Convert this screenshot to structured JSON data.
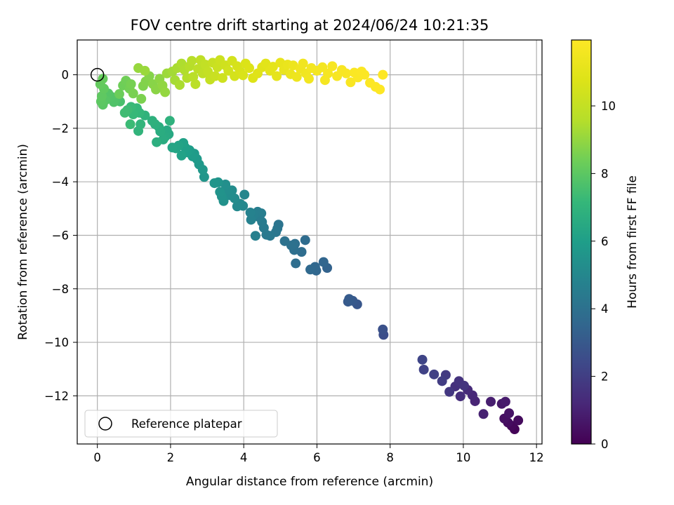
{
  "chart_data": {
    "type": "scatter",
    "title": "FOV centre drift starting at 2024/06/24 10:21:35",
    "xlabel": "Angular distance from reference (arcmin)",
    "ylabel": "Rotation from reference (arcmin)",
    "colorbar_label": "Hours from first FF file",
    "xlim": [
      -0.55,
      12.15
    ],
    "ylim": [
      -13.8,
      1.3
    ],
    "x_ticks": [
      "0",
      "2",
      "4",
      "6",
      "8",
      "10",
      "12"
    ],
    "y_ticks": [
      "0",
      "−2",
      "−4",
      "−6",
      "−8",
      "−10",
      "−12"
    ],
    "colorbar_range": [
      0,
      11.95
    ],
    "colorbar_ticks": [
      "0",
      "2",
      "4",
      "6",
      "8",
      "10"
    ],
    "colormap": "viridis",
    "grid": true,
    "legend_position": "lower-left",
    "marker_color_default": "#1f77b4",
    "reference": {
      "name": "Reference platepar",
      "x": 0,
      "y": 0
    },
    "points": [
      [
        11.4,
        -13.25,
        0.1
      ],
      [
        11.32,
        -13.12,
        0.2
      ],
      [
        11.5,
        -12.92,
        0.3
      ],
      [
        11.22,
        -13.0,
        0.35
      ],
      [
        11.12,
        -12.85,
        0.45
      ],
      [
        11.25,
        -12.65,
        0.55
      ],
      [
        11.05,
        -12.3,
        0.7
      ],
      [
        11.15,
        -12.22,
        0.8
      ],
      [
        10.75,
        -12.22,
        0.9
      ],
      [
        10.55,
        -12.68,
        1.0
      ],
      [
        10.32,
        -12.2,
        1.1
      ],
      [
        10.25,
        -11.98,
        1.2
      ],
      [
        10.12,
        -11.78,
        1.3
      ],
      [
        9.92,
        -12.02,
        1.4
      ],
      [
        9.78,
        -11.65,
        1.5
      ],
      [
        9.88,
        -11.45,
        1.6
      ],
      [
        10.02,
        -11.62,
        1.65
      ],
      [
        9.62,
        -11.85,
        1.75
      ],
      [
        9.52,
        -11.22,
        1.85
      ],
      [
        9.42,
        -11.45,
        1.95
      ],
      [
        9.2,
        -11.2,
        2.05
      ],
      [
        8.92,
        -11.02,
        2.15
      ],
      [
        8.88,
        -10.65,
        2.25
      ],
      [
        7.82,
        -9.72,
        2.6
      ],
      [
        7.8,
        -9.52,
        2.7
      ],
      [
        7.1,
        -8.58,
        2.9
      ],
      [
        6.98,
        -8.45,
        3.0
      ],
      [
        6.85,
        -8.48,
        3.05
      ],
      [
        6.88,
        -8.38,
        3.1
      ],
      [
        6.28,
        -7.22,
        3.4
      ],
      [
        6.18,
        -7.0,
        3.5
      ],
      [
        5.98,
        -7.32,
        3.55
      ],
      [
        5.95,
        -7.18,
        3.6
      ],
      [
        5.82,
        -7.28,
        3.65
      ],
      [
        5.68,
        -6.18,
        3.75
      ],
      [
        5.58,
        -6.62,
        3.8
      ],
      [
        5.42,
        -7.05,
        3.85
      ],
      [
        5.38,
        -6.55,
        3.9
      ],
      [
        5.4,
        -6.32,
        3.95
      ],
      [
        5.3,
        -6.38,
        4.0
      ],
      [
        5.12,
        -6.22,
        4.05
      ],
      [
        4.95,
        -5.6,
        4.15
      ],
      [
        4.92,
        -5.75,
        4.2
      ],
      [
        4.88,
        -5.88,
        4.25
      ],
      [
        4.72,
        -6.02,
        4.3
      ],
      [
        4.62,
        -5.98,
        4.35
      ],
      [
        4.55,
        -5.72,
        4.4
      ],
      [
        4.5,
        -5.5,
        4.45
      ],
      [
        4.42,
        -5.32,
        4.5
      ],
      [
        4.48,
        -5.18,
        4.55
      ],
      [
        4.38,
        -5.12,
        4.6
      ],
      [
        4.28,
        -5.22,
        4.65
      ],
      [
        4.32,
        -6.02,
        4.7
      ],
      [
        4.2,
        -5.42,
        4.75
      ],
      [
        4.18,
        -5.15,
        4.8
      ],
      [
        4.02,
        -4.48,
        4.95
      ],
      [
        3.98,
        -4.9,
        5.0
      ],
      [
        3.9,
        -4.82,
        5.05
      ],
      [
        3.82,
        -4.92,
        5.1
      ],
      [
        3.75,
        -4.62,
        5.15
      ],
      [
        3.68,
        -4.32,
        5.2
      ],
      [
        3.62,
        -4.5,
        5.25
      ],
      [
        3.55,
        -4.28,
        5.3
      ],
      [
        3.5,
        -4.1,
        5.35
      ],
      [
        3.45,
        -4.72,
        5.4
      ],
      [
        3.4,
        -4.55,
        5.45
      ],
      [
        3.35,
        -4.38,
        5.5
      ],
      [
        3.3,
        -4.02,
        5.55
      ],
      [
        3.2,
        -4.05,
        5.6
      ],
      [
        2.92,
        -3.82,
        5.65
      ],
      [
        2.88,
        -3.55,
        5.7
      ],
      [
        2.78,
        -3.35,
        5.75
      ],
      [
        2.72,
        -3.15,
        5.8
      ],
      [
        2.65,
        -2.95,
        5.85
      ],
      [
        2.6,
        -3.05,
        5.9
      ],
      [
        2.52,
        -2.82,
        5.95
      ],
      [
        2.45,
        -2.9,
        6.0
      ],
      [
        2.4,
        -2.72,
        6.05
      ],
      [
        2.35,
        -2.55,
        6.1
      ],
      [
        2.3,
        -3.02,
        6.15
      ],
      [
        2.22,
        -2.65,
        6.2
      ],
      [
        2.15,
        -2.75,
        6.25
      ],
      [
        2.05,
        -2.72,
        6.3
      ],
      [
        1.95,
        -2.22,
        6.45
      ],
      [
        1.9,
        -2.08,
        6.5
      ],
      [
        1.85,
        -2.32,
        6.55
      ],
      [
        1.8,
        -2.42,
        6.6
      ],
      [
        1.72,
        -2.12,
        6.65
      ],
      [
        1.68,
        -1.95,
        6.7
      ],
      [
        1.62,
        -2.52,
        6.75
      ],
      [
        1.58,
        -1.85,
        6.8
      ],
      [
        1.5,
        -1.72,
        6.85
      ],
      [
        1.98,
        -1.72,
        6.9
      ],
      [
        1.3,
        -1.52,
        6.95
      ],
      [
        1.12,
        -2.1,
        7.0
      ],
      [
        1.18,
        -1.85,
        7.05
      ],
      [
        1.15,
        -1.42,
        7.1
      ],
      [
        1.08,
        -1.25,
        7.15
      ],
      [
        0.98,
        -1.48,
        7.2
      ],
      [
        0.92,
        -1.2,
        7.25
      ],
      [
        0.9,
        -1.85,
        7.3
      ],
      [
        0.82,
        -1.32,
        7.35
      ],
      [
        0.75,
        -1.42,
        7.4
      ],
      [
        0.62,
        -1.0,
        7.6
      ],
      [
        0.52,
        -0.92,
        7.7
      ],
      [
        0.45,
        -1.02,
        7.75
      ],
      [
        0.38,
        -0.82,
        7.8
      ],
      [
        0.3,
        -0.7,
        7.85
      ],
      [
        0.22,
        -0.95,
        7.9
      ],
      [
        0.15,
        -1.12,
        7.95
      ],
      [
        0.1,
        -1.0,
        8.0
      ],
      [
        0.12,
        -0.8,
        8.05
      ],
      [
        0.18,
        -0.52,
        8.1
      ],
      [
        0.08,
        -0.35,
        8.15
      ],
      [
        0.15,
        -0.15,
        8.2
      ],
      [
        0.6,
        -0.72,
        8.3
      ],
      [
        0.7,
        -0.4,
        8.35
      ],
      [
        0.78,
        -0.22,
        8.4
      ],
      [
        0.88,
        -0.52,
        8.45
      ],
      [
        0.92,
        -0.35,
        8.5
      ],
      [
        0.98,
        -0.7,
        8.55
      ],
      [
        1.2,
        -0.9,
        8.6
      ],
      [
        1.25,
        -0.42,
        8.65
      ],
      [
        1.32,
        -0.25,
        8.7
      ],
      [
        1.42,
        -0.05,
        8.75
      ],
      [
        1.52,
        -0.35,
        8.8
      ],
      [
        1.6,
        -0.55,
        8.85
      ],
      [
        1.7,
        -0.15,
        8.9
      ],
      [
        1.78,
        -0.4,
        8.95
      ],
      [
        1.85,
        -0.65,
        9.0
      ],
      [
        1.12,
        0.25,
        9.05
      ],
      [
        1.3,
        0.15,
        9.1
      ],
      [
        1.9,
        0.05,
        9.15
      ],
      [
        2.05,
        0.12,
        9.25
      ],
      [
        2.12,
        -0.2,
        9.3
      ],
      [
        2.18,
        0.25,
        9.35
      ],
      [
        2.25,
        -0.38,
        9.4
      ],
      [
        2.3,
        0.42,
        9.45
      ],
      [
        2.38,
        0.18,
        9.5
      ],
      [
        2.45,
        -0.12,
        9.55
      ],
      [
        2.52,
        0.32,
        9.6
      ],
      [
        2.58,
        0.52,
        9.65
      ],
      [
        2.62,
        -0.08,
        9.7
      ],
      [
        2.68,
        -0.35,
        9.75
      ],
      [
        2.75,
        0.22,
        9.8
      ],
      [
        2.82,
        0.55,
        9.85
      ],
      [
        2.88,
        0.05,
        9.9
      ],
      [
        2.95,
        0.38,
        9.95
      ],
      [
        3.02,
        0.12,
        10.0
      ],
      [
        3.08,
        -0.18,
        10.05
      ],
      [
        3.15,
        0.45,
        10.1
      ],
      [
        3.22,
        -0.05,
        10.15
      ],
      [
        3.28,
        0.28,
        10.2
      ],
      [
        3.35,
        0.55,
        10.25
      ],
      [
        3.42,
        -0.12,
        10.3
      ],
      [
        3.5,
        0.35,
        10.35
      ],
      [
        3.58,
        0.15,
        10.4
      ],
      [
        3.68,
        0.52,
        10.45
      ],
      [
        3.75,
        -0.05,
        10.5
      ],
      [
        3.82,
        0.32,
        10.55
      ],
      [
        3.9,
        0.12,
        10.6
      ],
      [
        3.98,
        -0.02,
        10.65
      ],
      [
        4.05,
        0.42,
        10.7
      ],
      [
        4.15,
        0.25,
        10.75
      ],
      [
        4.25,
        -0.12,
        10.8
      ],
      [
        4.38,
        0.05,
        10.85
      ],
      [
        4.5,
        0.28,
        10.9
      ],
      [
        4.6,
        0.42,
        10.95
      ],
      [
        4.72,
        0.15,
        11.0
      ],
      [
        4.8,
        0.3,
        11.05
      ],
      [
        4.9,
        -0.05,
        11.1
      ],
      [
        5.0,
        0.45,
        11.15
      ],
      [
        5.1,
        0.18,
        11.2
      ],
      [
        5.2,
        0.38,
        11.25
      ],
      [
        5.28,
        0.02,
        11.3
      ],
      [
        5.35,
        0.35,
        11.35
      ],
      [
        5.45,
        -0.08,
        11.4
      ],
      [
        5.55,
        0.22,
        11.45
      ],
      [
        5.62,
        0.42,
        11.5
      ],
      [
        5.7,
        0.05,
        11.52
      ],
      [
        5.78,
        -0.15,
        11.55
      ],
      [
        5.85,
        0.25,
        11.58
      ],
      [
        6.0,
        0.15,
        11.6
      ],
      [
        6.15,
        0.28,
        11.63
      ],
      [
        6.22,
        -0.2,
        11.66
      ],
      [
        6.3,
        0.05,
        11.69
      ],
      [
        6.42,
        0.32,
        11.72
      ],
      [
        6.55,
        -0.05,
        11.74
      ],
      [
        6.68,
        0.18,
        11.76
      ],
      [
        6.8,
        0.05,
        11.78
      ],
      [
        6.92,
        -0.28,
        11.8
      ],
      [
        7.02,
        0.08,
        11.82
      ],
      [
        7.12,
        -0.1,
        11.84
      ],
      [
        7.22,
        0.12,
        11.86
      ],
      [
        7.3,
        0.0,
        11.88
      ],
      [
        7.45,
        -0.3,
        11.9
      ],
      [
        7.6,
        -0.45,
        11.92
      ],
      [
        7.72,
        -0.55,
        11.94
      ],
      [
        7.8,
        0.0,
        11.95
      ]
    ]
  }
}
